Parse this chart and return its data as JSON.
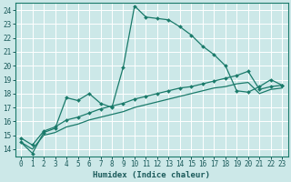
{
  "title": "",
  "xlabel": "Humidex (Indice chaleur)",
  "bg_color": "#cce8e8",
  "grid_color": "#ffffff",
  "line_color": "#1a7a6a",
  "xlim": [
    -0.5,
    23.5
  ],
  "ylim": [
    13.5,
    24.5
  ],
  "yticks": [
    14,
    15,
    16,
    17,
    18,
    19,
    20,
    21,
    22,
    23,
    24
  ],
  "xticks": [
    0,
    1,
    2,
    3,
    4,
    5,
    6,
    7,
    8,
    9,
    10,
    11,
    12,
    13,
    14,
    15,
    16,
    17,
    18,
    19,
    20,
    21,
    22,
    23
  ],
  "series1_x": [
    0,
    1,
    2,
    3,
    4,
    5,
    6,
    7,
    8,
    9,
    10,
    11,
    12,
    13,
    14,
    15,
    16,
    17,
    18,
    19,
    20,
    21,
    22,
    23
  ],
  "series1_y": [
    14.5,
    13.7,
    15.2,
    15.5,
    17.7,
    17.5,
    18.0,
    17.3,
    17.0,
    19.9,
    24.3,
    23.5,
    23.4,
    23.3,
    22.8,
    22.2,
    21.4,
    20.8,
    20.0,
    18.2,
    18.1,
    18.5,
    19.0,
    18.6
  ],
  "series2_x": [
    0,
    1,
    2,
    3,
    4,
    5,
    6,
    7,
    8,
    9,
    10,
    11,
    12,
    13,
    14,
    15,
    16,
    17,
    18,
    19,
    20,
    21,
    22,
    23
  ],
  "series2_y": [
    14.8,
    14.3,
    15.3,
    15.6,
    16.1,
    16.3,
    16.6,
    16.9,
    17.1,
    17.3,
    17.6,
    17.8,
    18.0,
    18.2,
    18.4,
    18.5,
    18.7,
    18.9,
    19.1,
    19.3,
    19.6,
    18.3,
    18.5,
    18.6
  ],
  "series3_x": [
    0,
    1,
    2,
    3,
    4,
    5,
    6,
    7,
    8,
    9,
    10,
    11,
    12,
    13,
    14,
    15,
    16,
    17,
    18,
    19,
    20,
    21,
    22,
    23
  ],
  "series3_y": [
    14.5,
    14.0,
    15.0,
    15.2,
    15.6,
    15.8,
    16.1,
    16.3,
    16.5,
    16.7,
    17.0,
    17.2,
    17.4,
    17.6,
    17.8,
    18.0,
    18.2,
    18.4,
    18.5,
    18.7,
    18.8,
    18.0,
    18.3,
    18.4
  ],
  "tick_fontsize": 5.5,
  "xlabel_fontsize": 6.5
}
